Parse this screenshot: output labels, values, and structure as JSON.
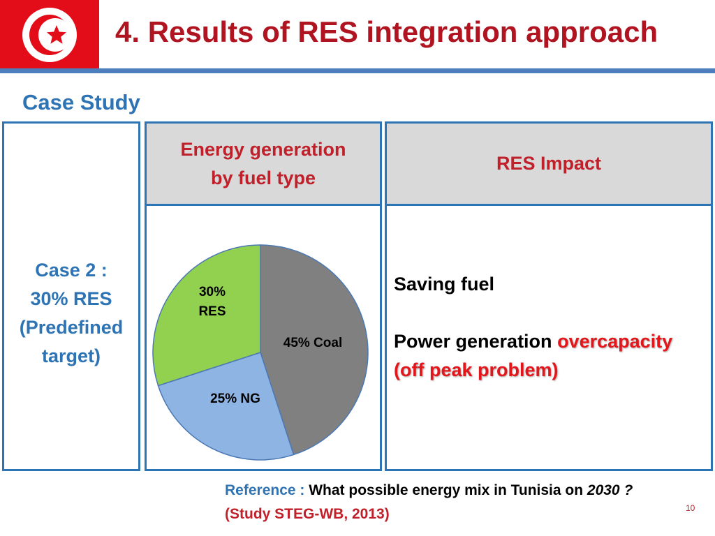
{
  "header": {
    "title": "4. Results of RES integration approach",
    "flag_icon": "tunisia-flag-icon",
    "colors": {
      "flag_red": "#e20d18",
      "title_red": "#b01421",
      "accent_blue": "#4d7fbe"
    }
  },
  "section": {
    "label": "Case Study"
  },
  "table": {
    "case_label_lines": [
      "Case 2 :",
      "30% RES",
      "(Predefined",
      "target)"
    ],
    "energy_header_lines": [
      "Energy generation",
      "by fuel type"
    ],
    "impact_header": "RES Impact",
    "impact": {
      "line1": "Saving fuel",
      "line2_prefix": "Power generation ",
      "line2_highlight": "overcapacity",
      "line3_highlight": "(off peak problem)"
    }
  },
  "chart_data": {
    "type": "pie",
    "slices": [
      {
        "name": "Coal",
        "value": 45,
        "label": "45% Coal",
        "color": "#808080"
      },
      {
        "name": "NG",
        "value": 25,
        "label": "25% NG",
        "color": "#8eb4e3"
      },
      {
        "name": "RES",
        "value": 30,
        "label_lines": [
          "30%",
          "RES"
        ],
        "color": "#92d050"
      }
    ],
    "start": "12 o'clock",
    "direction": "clockwise"
  },
  "reference": {
    "label": "Reference : ",
    "text": "What possible energy mix in Tunisia on ",
    "emphasis": "2030 ?",
    "study": "(Study STEG-WB, 2013)"
  },
  "page_number": "10"
}
